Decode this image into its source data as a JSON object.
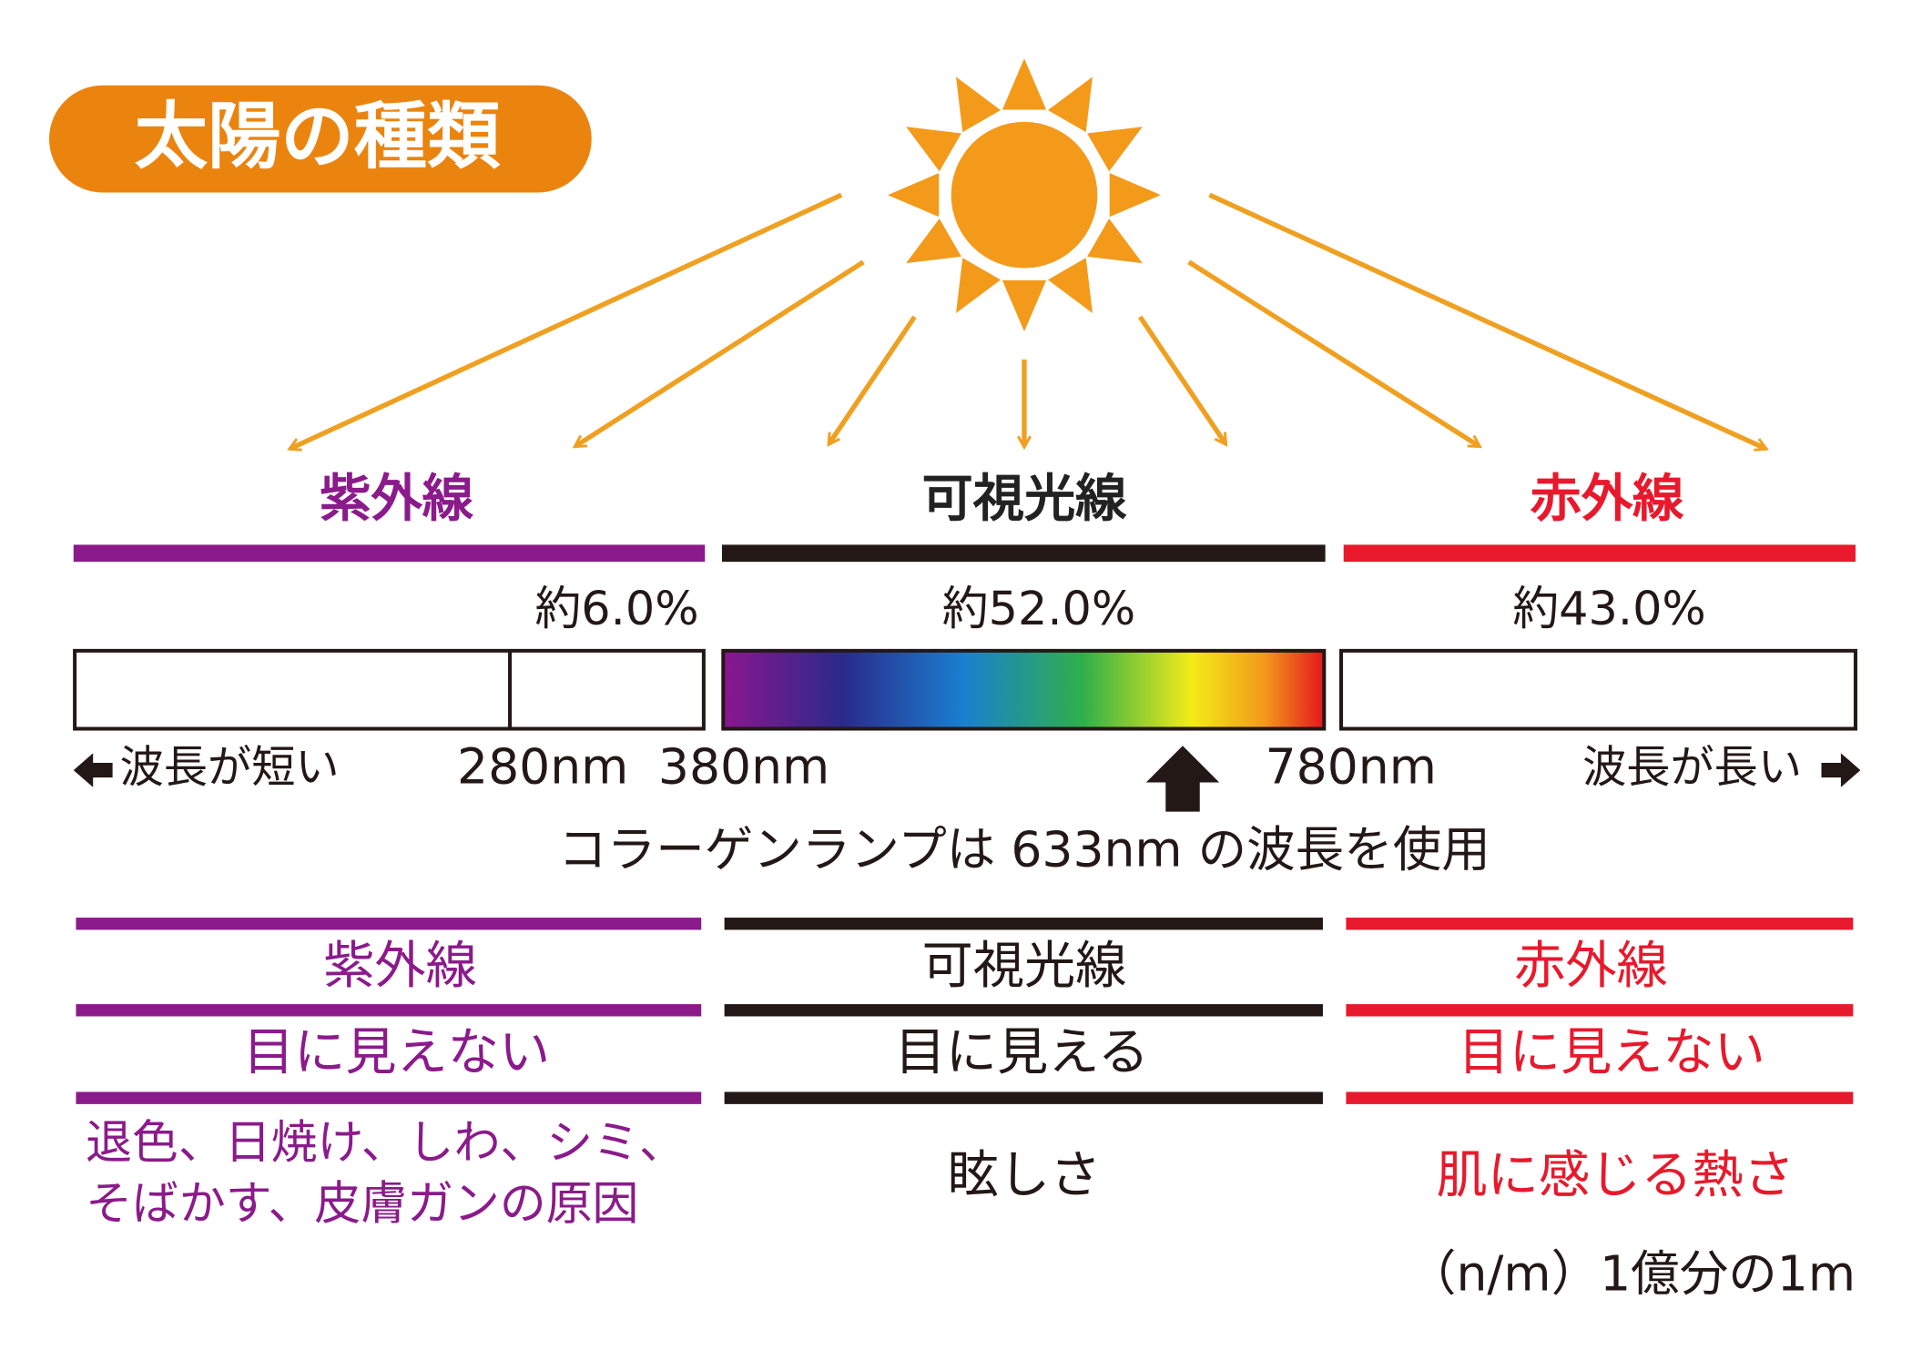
{
  "title": "太陽の種類",
  "sections": [
    {
      "name": "紫外線",
      "share": "約6.0%",
      "visibility": "目に見えない",
      "effect": [
        "退色、日焼け、しわ、シミ、",
        "そばかす、皮膚ガンの原因"
      ]
    },
    {
      "name": "可視光線",
      "share": "約52.0%",
      "visibility": "目に見える",
      "effect": [
        "眩しさ"
      ]
    },
    {
      "name": "赤外線",
      "share": "約43.0%",
      "visibility": "目に見えない",
      "effect": [
        "肌に感じる熱さ"
      ]
    }
  ],
  "scale": {
    "short": "波長が短い",
    "long": "波長が長い",
    "marks": [
      "280nm",
      "380nm",
      "780nm"
    ]
  },
  "note": "コラーゲンランプは 633nm の波長を使用",
  "footnote": "（n/m）1億分の1m"
}
